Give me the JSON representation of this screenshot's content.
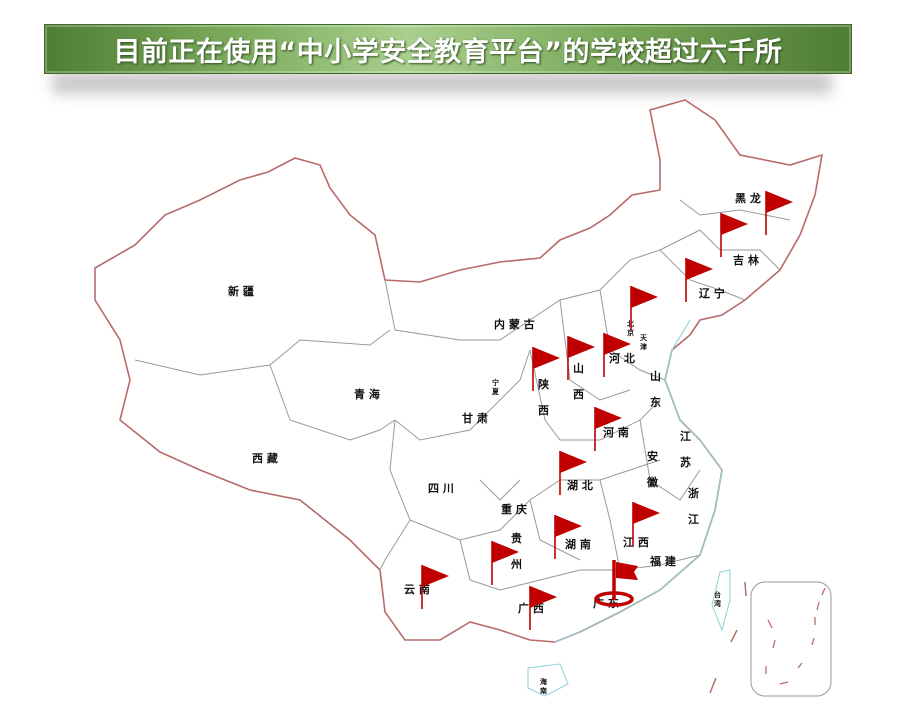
{
  "banner": {
    "title": "目前正在使用“中小学安全教育平台”的学校超过六千所"
  },
  "colors": {
    "border": "#b86a6a",
    "province_line": "#9a9a9a",
    "coast": "#8fd0d6",
    "flag": "#c00000",
    "banner": "#6f9f52"
  },
  "provinces": [
    {
      "name": "新疆",
      "label": "新 疆"
    },
    {
      "name": "西藏",
      "label": "西 藏"
    },
    {
      "name": "青海",
      "label": "青 海"
    },
    {
      "name": "内蒙古",
      "label": "内 蒙 古"
    },
    {
      "name": "甘肃",
      "label": "甘 肃"
    },
    {
      "name": "宁夏",
      "label": "宁夏"
    },
    {
      "name": "陕西",
      "label": "陕 西"
    },
    {
      "name": "山西",
      "label": "山 西"
    },
    {
      "name": "河北",
      "label": "河 北"
    },
    {
      "name": "北京",
      "label": "北京"
    },
    {
      "name": "天津",
      "label": "天津"
    },
    {
      "name": "山东",
      "label": "山 东"
    },
    {
      "name": "河南",
      "label": "河 南"
    },
    {
      "name": "江苏",
      "label": "江 苏"
    },
    {
      "name": "安徽",
      "label": "安 徽"
    },
    {
      "name": "湖北",
      "label": "湖 北"
    },
    {
      "name": "四川",
      "label": "四 川"
    },
    {
      "name": "重庆",
      "label": "重 庆"
    },
    {
      "name": "浙江",
      "label": "浙 江"
    },
    {
      "name": "贵州",
      "label": "贵 州"
    },
    {
      "name": "湖南",
      "label": "湖 南"
    },
    {
      "name": "江西",
      "label": "江 西"
    },
    {
      "name": "福建",
      "label": "福 建"
    },
    {
      "name": "云南",
      "label": "云 南"
    },
    {
      "name": "广西",
      "label": "广 西"
    },
    {
      "name": "广东",
      "label": "广 东"
    },
    {
      "name": "台湾",
      "label": "台湾"
    },
    {
      "name": "海南",
      "label": "海南"
    },
    {
      "name": "黑龙江",
      "label": "黑 龙"
    },
    {
      "name": "吉林",
      "label": "吉 林"
    },
    {
      "name": "辽宁",
      "label": "辽 宁"
    }
  ],
  "flags": [
    "黑龙江",
    "黑龙江-南",
    "吉林",
    "辽宁",
    "陕西",
    "山西",
    "河北",
    "河南",
    "湖北",
    "江西",
    "湖南",
    "贵州",
    "云南",
    "广西",
    "广东"
  ],
  "highlighted": "广东"
}
